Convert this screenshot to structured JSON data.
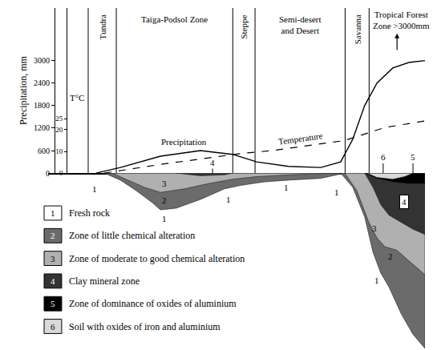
{
  "chart_data": {
    "type": "line",
    "xlim": [
      -10,
      100
    ],
    "ylim": [
      0,
      4400
    ],
    "yticks": [
      0,
      600,
      1200,
      1800,
      2400,
      3000
    ],
    "ylabel": "Precipitation, mm",
    "y2lim": [
      0,
      76
    ],
    "y2ticks": [
      0,
      10,
      20,
      25
    ],
    "y2label": "T°C",
    "tick_labels": "y",
    "grid": false,
    "series": [
      {
        "name": "Precipitation",
        "color": "#000000",
        "line_style": "solid",
        "x": [
          4.0,
          11.1,
          22.8,
          34.5,
          43.8,
          50.9,
          60.2,
          69.6,
          75.4,
          78.9,
          82.4,
          86.0,
          90.6,
          95.3,
          100
        ],
        "values": [
          0,
          150,
          450,
          600,
          500,
          300,
          180,
          150,
          300,
          900,
          1800,
          2400,
          2800,
          2950,
          3000
        ]
      },
      {
        "name": "Temperature",
        "color": "#000000",
        "line_style": "dash",
        "axis": "y2",
        "x": [
          6.4,
          22.8,
          46.2,
          55.5,
          76.6,
          88.3,
          100
        ],
        "values": [
          0,
          4,
          9,
          10.4,
          15,
          21,
          24
        ]
      }
    ],
    "zones": [
      {
        "name": "Tundra",
        "from": 1.7,
        "to": 9.9
      },
      {
        "name": "Taiga-Podsol Zone",
        "from": 9.9,
        "to": 43.9
      },
      {
        "name": "Steppe",
        "from": 43.9,
        "to": 50.4
      },
      {
        "name": "Semi-desert\nand Desert",
        "from": 50.4,
        "to": 76.7
      },
      {
        "name": "Savanna",
        "from": 76.7,
        "to": 83.7
      },
      {
        "name": "Tropical Forest\nZone >3000mm",
        "from": 83.7,
        "to": 100
      }
    ],
    "profile": {
      "ylim": [
        0,
        100
      ],
      "layers": [
        {
          "id": "1",
          "label": "Fresh rock",
          "color": "#ffffff"
        },
        {
          "id": "2",
          "label": "Zone of little chemical alteration",
          "color": "#6b6b6b",
          "parts": [
            {
              "x": [
                6.4,
                11.1,
                15.7,
                20.5,
                22.8,
                27.4,
                34.5,
                41.5,
                46.2,
                53.2,
                60.2,
                69.6,
                76.6
              ],
              "depth": [
                0,
                4,
                10,
                17,
                21,
                20,
                15,
                9,
                7,
                5,
                4,
                3,
                0
              ]
            },
            {
              "x": [
                75.4,
                78.9,
                82.4,
                84.8,
                87.1,
                89.5,
                93,
                96.5,
                100
              ],
              "depth": [
                0,
                8,
                25,
                45,
                57,
                65,
                80,
                92,
                100
              ]
            }
          ]
        },
        {
          "id": "3",
          "label": "Zone of moderate to good chemical alteration",
          "color": "#b0b0b0",
          "parts": [
            {
              "x": [
                8.7,
                13.4,
                18,
                22.8,
                29.8,
                36.8,
                43.8,
                50.9,
                60.2,
                74.3
              ],
              "depth": [
                0,
                4,
                8,
                11,
                9,
                6,
                3.5,
                2,
                1,
                0
              ]
            },
            {
              "x": [
                76.6,
                80.1,
                83.6,
                86,
                88.3,
                91.8,
                95.3,
                100
              ],
              "depth": [
                0,
                10,
                28,
                37,
                42,
                44,
                50,
                58
              ]
            }
          ]
        },
        {
          "id": "4",
          "label": "Clay mineral zone",
          "color": "#333333",
          "parts": [
            {
              "x": [
                27.4,
                34.5,
                41.5,
                43.8
              ],
              "depth": [
                0,
                1.5,
                1,
                0
              ]
            },
            {
              "x": [
                82.4,
                84.8,
                87.1,
                89.5,
                93,
                96.5,
                100
              ],
              "depth": [
                0,
                8,
                18,
                24,
                28,
                32,
                35
              ]
            }
          ]
        },
        {
          "id": "5",
          "label": "Zone of dominance of oxides of aluminium",
          "color": "#000000",
          "parts": [
            {
              "x": [
                82.4,
                86,
                90.6,
                95.3,
                100
              ],
              "depth": [
                0,
                3,
                5,
                6,
                6
              ]
            }
          ]
        },
        {
          "id": "6",
          "label": "Soil with oxides of iron and aluminium",
          "color": "#d9d9d9",
          "parts": [
            {
              "x": [
                83.1,
                86,
                90.6,
                94.1,
                96.5
              ],
              "depth": [
                0,
                2.5,
                3.5,
                2,
                0
              ]
            }
          ]
        }
      ],
      "labels": [
        {
          "text": "1",
          "x": 3.6,
          "depth": 9
        },
        {
          "text": "1",
          "x": 24,
          "depth": 26
        },
        {
          "text": "1",
          "x": 42.7,
          "depth": 15
        },
        {
          "text": "1",
          "x": 59.5,
          "depth": 8
        },
        {
          "text": "1",
          "x": 74.3,
          "depth": 11
        },
        {
          "text": "1",
          "x": 86,
          "depth": 61
        },
        {
          "text": "2",
          "x": 24,
          "depth": 15.5
        },
        {
          "text": "3",
          "x": 24,
          "depth": 6
        },
        {
          "text": "2",
          "x": 90,
          "depth": 47.5
        },
        {
          "text": "3",
          "x": 85.3,
          "depth": 31.5
        },
        {
          "text": "4",
          "x": 94,
          "depth": 16.4
        },
        {
          "text": "4",
          "x": 38,
          "depth": -6
        },
        {
          "text": "6",
          "x": 87.8,
          "depth": -9
        },
        {
          "text": "5",
          "x": 96.5,
          "depth": -9
        }
      ]
    }
  }
}
